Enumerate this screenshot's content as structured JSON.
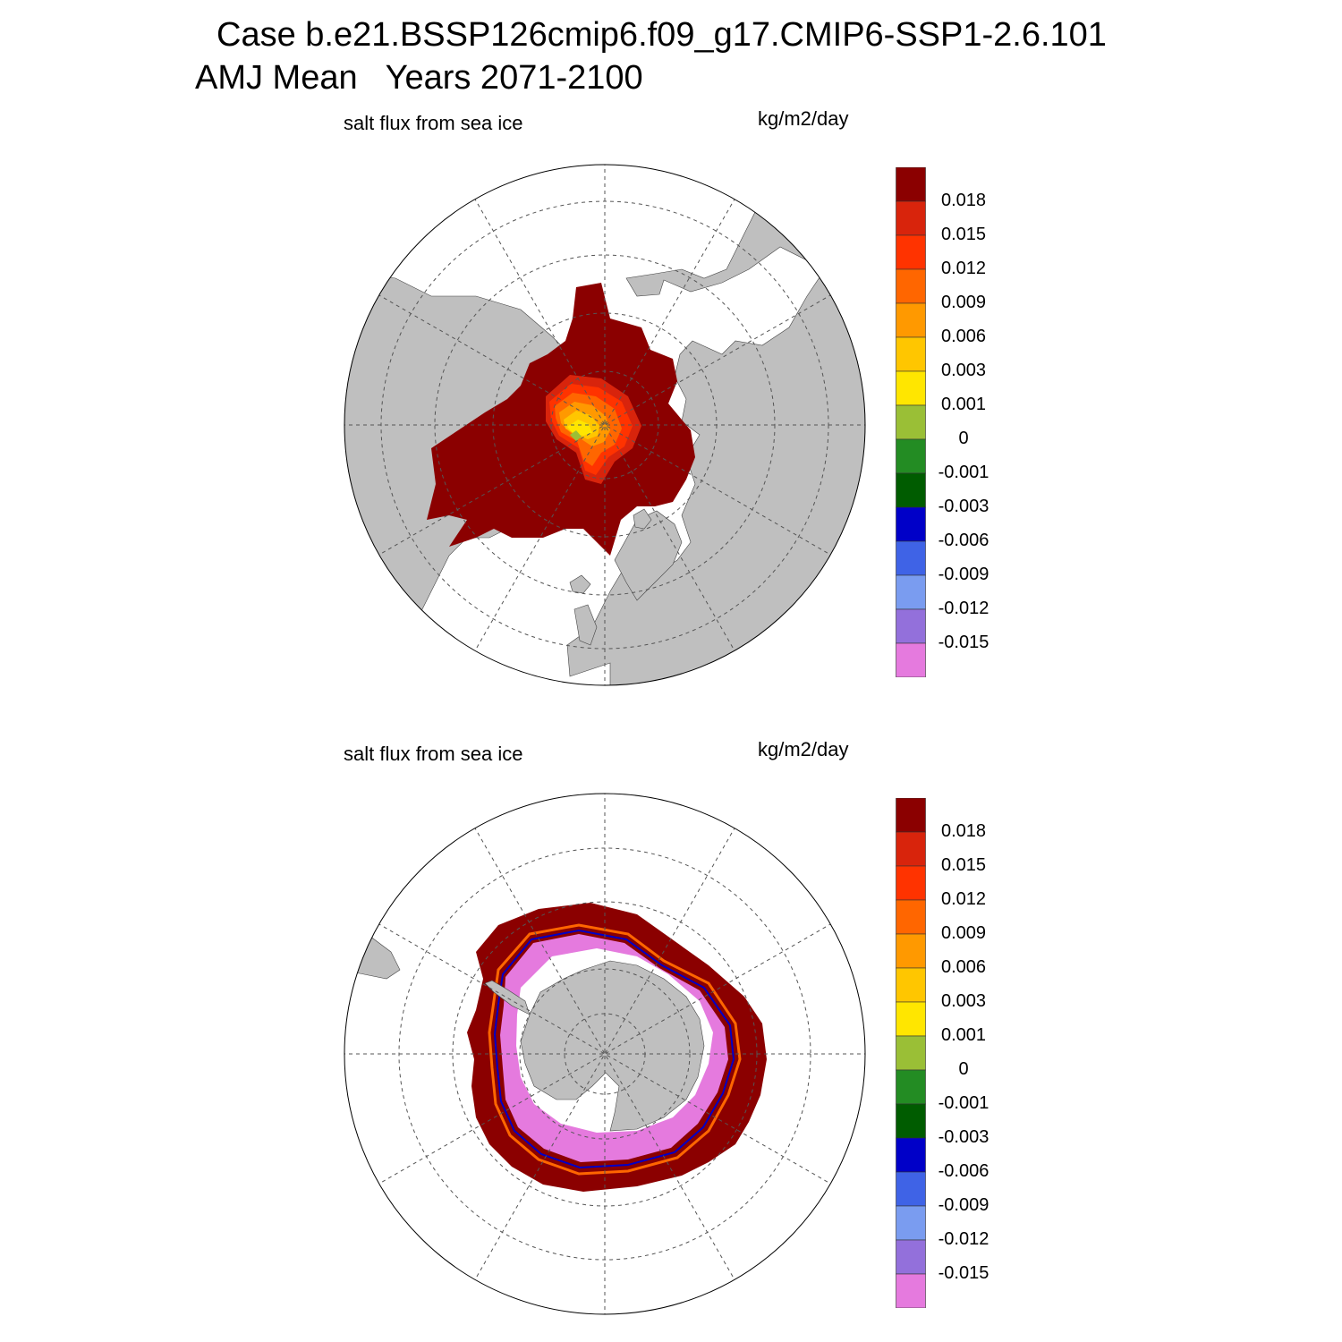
{
  "header": {
    "line1": "Case b.e21.BSSP126cmip6.f09_g17.CMIP6-SSP1-2.6.101",
    "line2": "AMJ Mean   Years 2071-2100"
  },
  "panels": [
    {
      "id": "north",
      "title": "salt flux from sea ice",
      "units": "kg/m2/day"
    },
    {
      "id": "south",
      "title": "salt flux from sea ice",
      "units": "kg/m2/day"
    }
  ],
  "colorbar": {
    "labels": [
      "0.018",
      "0.015",
      "0.012",
      "0.009",
      "0.006",
      "0.003",
      "0.001",
      "0",
      "-0.001",
      "-0.003",
      "-0.006",
      "-0.009",
      "-0.012",
      "-0.015"
    ],
    "colors": [
      "#8b0000",
      "#d8240c",
      "#ff3300",
      "#ff6600",
      "#ff9900",
      "#ffc600",
      "#ffe600",
      "#9abf36",
      "#238c23",
      "#005c00",
      "#0000c8",
      "#3f63e6",
      "#7a9cf0",
      "#9370db",
      "#e57ade"
    ]
  },
  "map_colors": {
    "land": "#bfbfbf",
    "ocean": "#ffffff",
    "grid": "#555555"
  }
}
